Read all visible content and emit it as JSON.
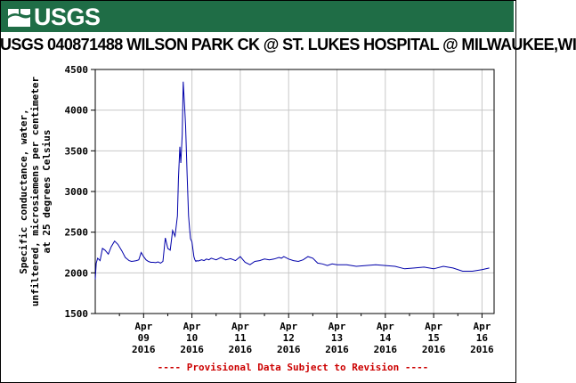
{
  "brand": {
    "logo_text": "USGS",
    "banner_color": "#1f6d46"
  },
  "title": "USGS 040871488 WILSON PARK CK @ ST. LUKES HOSPITAL @ MILWAUKEE,WI",
  "notice": "---- Provisional Data Subject to Revision ----",
  "chart_data": {
    "type": "line",
    "title": "USGS 040871488 WILSON PARK CK @ ST. LUKES HOSPITAL @ MILWAUKEE,WI",
    "ylabel_lines": [
      "Specific conductance, water,",
      "unfiltered, microsiemens per centimeter",
      "at 25 degrees Celsius"
    ],
    "ylim": [
      1500,
      4500
    ],
    "yticks": [
      1500,
      2000,
      2500,
      3000,
      3500,
      4000,
      4500
    ],
    "xlim": [
      8.0,
      16.25
    ],
    "xticks": [
      {
        "x": 9,
        "label": [
          "Apr",
          "09",
          "2016"
        ]
      },
      {
        "x": 10,
        "label": [
          "Apr",
          "10",
          "2016"
        ]
      },
      {
        "x": 11,
        "label": [
          "Apr",
          "11",
          "2016"
        ]
      },
      {
        "x": 12,
        "label": [
          "Apr",
          "12",
          "2016"
        ]
      },
      {
        "x": 13,
        "label": [
          "Apr",
          "13",
          "2016"
        ]
      },
      {
        "x": 14,
        "label": [
          "Apr",
          "14",
          "2016"
        ]
      },
      {
        "x": 15,
        "label": [
          "Apr",
          "15",
          "2016"
        ]
      },
      {
        "x": 16,
        "label": [
          "Apr",
          "16",
          "2016"
        ]
      }
    ],
    "grid": true,
    "line_color": "#0000aa",
    "series": [
      {
        "x": [
          8.0,
          8.02,
          8.05,
          8.1,
          8.15,
          8.2,
          8.27,
          8.33,
          8.4,
          8.47,
          8.55,
          8.62,
          8.7,
          8.75,
          8.8,
          8.85,
          8.9,
          8.95,
          9.0,
          9.05,
          9.1,
          9.15,
          9.2,
          9.25,
          9.3,
          9.35,
          9.4,
          9.45,
          9.5,
          9.55,
          9.6,
          9.65,
          9.7,
          9.72,
          9.75,
          9.77,
          9.8,
          9.82,
          9.85,
          9.87,
          9.9,
          9.93,
          9.95,
          9.97,
          10.0,
          10.02,
          10.04,
          10.06,
          10.08,
          10.1,
          10.12,
          10.15,
          10.2,
          10.25,
          10.3,
          10.35,
          10.4,
          10.5,
          10.6,
          10.7,
          10.8,
          10.9,
          11.0,
          11.1,
          11.2,
          11.3,
          11.4,
          11.5,
          11.6,
          11.7,
          11.8,
          11.85,
          11.9,
          12.0,
          12.1,
          12.2,
          12.3,
          12.4,
          12.5,
          12.6,
          12.7,
          12.8,
          12.9,
          13.0,
          13.2,
          13.4,
          13.6,
          13.8,
          14.0,
          14.2,
          14.4,
          14.6,
          14.8,
          15.0,
          15.2,
          15.4,
          15.6,
          15.8,
          16.0,
          16.15
        ],
        "y": [
          1920,
          2120,
          2180,
          2150,
          2300,
          2280,
          2230,
          2320,
          2390,
          2350,
          2270,
          2190,
          2150,
          2140,
          2145,
          2150,
          2160,
          2250,
          2200,
          2160,
          2140,
          2130,
          2130,
          2125,
          2135,
          2120,
          2140,
          2430,
          2300,
          2280,
          2520,
          2450,
          2700,
          3150,
          3550,
          3350,
          3700,
          4350,
          4020,
          3800,
          3200,
          2700,
          2550,
          2420,
          2380,
          2290,
          2200,
          2160,
          2140,
          2150,
          2145,
          2150,
          2160,
          2150,
          2170,
          2160,
          2180,
          2160,
          2190,
          2160,
          2175,
          2150,
          2200,
          2130,
          2100,
          2140,
          2150,
          2170,
          2160,
          2170,
          2190,
          2180,
          2200,
          2170,
          2150,
          2140,
          2160,
          2200,
          2180,
          2120,
          2110,
          2090,
          2110,
          2100,
          2100,
          2080,
          2090,
          2100,
          2090,
          2080,
          2050,
          2060,
          2070,
          2050,
          2080,
          2060,
          2020,
          2020,
          2040,
          2060
        ]
      }
    ]
  }
}
